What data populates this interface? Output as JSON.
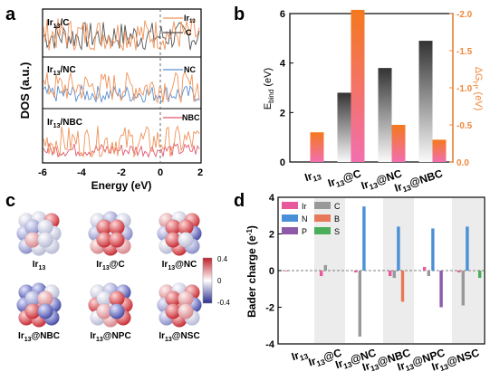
{
  "panel_letters": {
    "a": "a",
    "b": "b",
    "c": "c",
    "d": "d"
  },
  "panel_a": {
    "ylabel": "DOS (a.u.)",
    "xlabel": "Energy (eV)",
    "xticks": [
      "-6",
      "-4",
      "-2",
      "0",
      "2"
    ],
    "subpanels": [
      {
        "title": "Ir13/C",
        "legend": [
          "Ir13",
          "C"
        ]
      },
      {
        "title": "Ir13/NC",
        "legend": [
          "NC"
        ]
      },
      {
        "title": "Ir13/NBC",
        "legend": [
          "NBC"
        ]
      }
    ],
    "colors": {
      "ir": "#f0935a",
      "c": "#555555",
      "nc": "#5b8fd0",
      "nbc": "#e05a6e"
    }
  },
  "panel_c": {
    "colorbar_ticks": [
      "0.4",
      "0",
      "-0.4"
    ],
    "clusters": [
      {
        "name": "Ir13",
        "sub": "13",
        "base": "Ir",
        "suffix": ""
      },
      {
        "name": "Ir13@C",
        "sub": "13",
        "base": "Ir",
        "suffix": "@C"
      },
      {
        "name": "Ir13@NC",
        "sub": "13",
        "base": "Ir",
        "suffix": "@NC"
      },
      {
        "name": "Ir13@NBC",
        "sub": "13",
        "base": "Ir",
        "suffix": "@NBC"
      },
      {
        "name": "Ir13@NPC",
        "sub": "13",
        "base": "Ir",
        "suffix": "@NPC"
      },
      {
        "name": "Ir13@NSC",
        "sub": "13",
        "base": "Ir",
        "suffix": "@NSC"
      }
    ]
  },
  "chart_data": [
    {
      "type": "bar",
      "panel": "b",
      "categories": [
        "Ir13",
        "Ir13@C",
        "Ir13@NC",
        "Ir13@NBC"
      ],
      "series": [
        {
          "name": "E_bind (eV)",
          "axis": "left",
          "values": [
            0,
            2.8,
            3.8,
            4.9
          ],
          "color": "#333333"
        },
        {
          "name": "ΔG_H* (eV)",
          "axis": "right",
          "values": [
            -0.4,
            -2.05,
            -0.5,
            -0.3
          ],
          "color": "#f0883a"
        }
      ],
      "ylabel_left": "E_bind (eV)",
      "ylabel_right": "ΔG_H* (eV)",
      "ylim_left": [
        0,
        6
      ],
      "ylim_right": [
        0,
        -2.0
      ],
      "yticks_left": [
        "0",
        "2",
        "4",
        "6"
      ],
      "yticks_right": [
        "0.0",
        "-0.5",
        "-1.0",
        "-1.5",
        "-2.0"
      ]
    },
    {
      "type": "bar",
      "panel": "d",
      "categories": [
        "Ir13",
        "Ir13@C",
        "Ir13@NC",
        "Ir13@NBC",
        "Ir13@NPC",
        "Ir13@NSC"
      ],
      "series": [
        {
          "name": "Ir",
          "color": "#e8589c",
          "values": [
            0,
            -0.3,
            -0.1,
            -0.3,
            0.2,
            -0.1
          ]
        },
        {
          "name": "C",
          "color": "#999999",
          "values": [
            null,
            0.3,
            -3.6,
            -0.4,
            -0.3,
            -1.9
          ]
        },
        {
          "name": "N",
          "color": "#4a90d9",
          "values": [
            null,
            null,
            3.5,
            2.4,
            2.3,
            2.4
          ]
        },
        {
          "name": "B",
          "color": "#e8785a",
          "values": [
            null,
            null,
            null,
            -1.7,
            null,
            null
          ]
        },
        {
          "name": "P",
          "color": "#8e5aa8",
          "values": [
            null,
            null,
            null,
            null,
            -2.0,
            null
          ]
        },
        {
          "name": "S",
          "color": "#4aad5a",
          "values": [
            null,
            null,
            null,
            null,
            null,
            -0.4
          ]
        }
      ],
      "ylabel": "Bader charge (e⁻¹)",
      "ylim": [
        -4,
        4
      ],
      "yticks": [
        "4",
        "2",
        "0",
        "-2",
        "-4"
      ],
      "legend_placement": "top-left"
    }
  ]
}
